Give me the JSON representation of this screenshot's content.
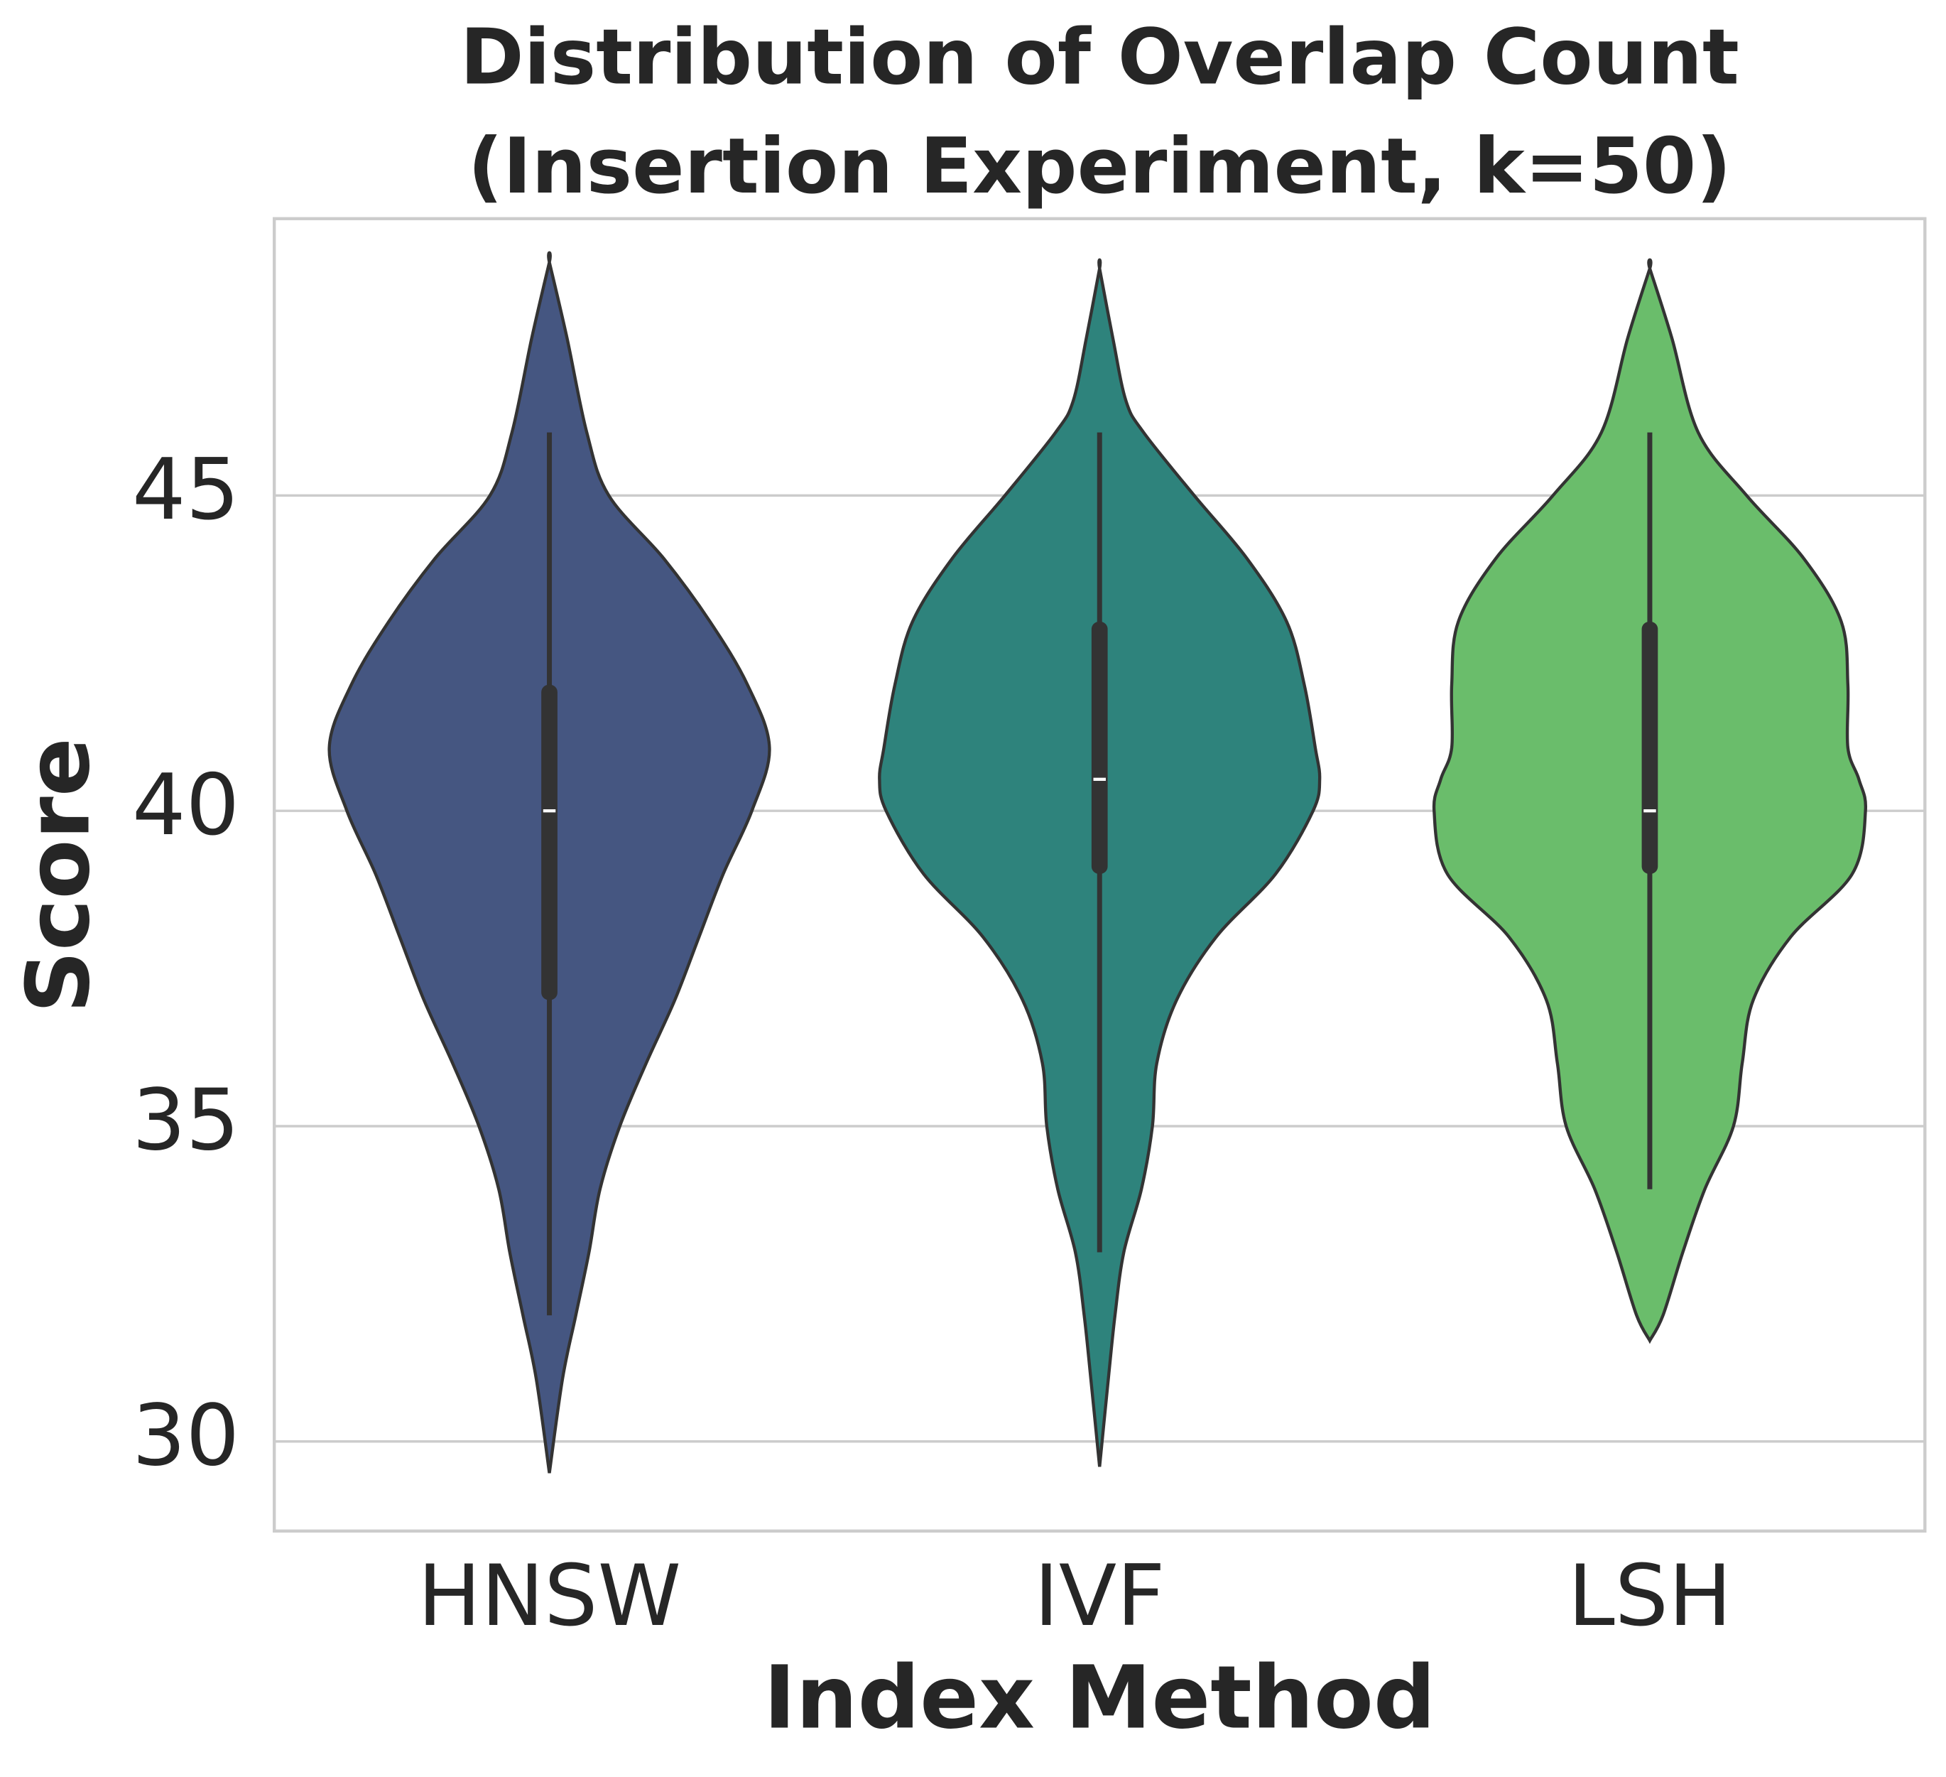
{
  "chart_data": {
    "type": "violin",
    "title": [
      "Distribution of Overlap Count",
      "(Insertion Experiment, k=50)"
    ],
    "x_label": "Index Method",
    "y_label": "Score",
    "categories": [
      "HNSW",
      "IVF",
      "LSH"
    ],
    "ylim": [
      28.58,
      49.39
    ],
    "yticks": [
      30,
      35,
      40,
      45
    ],
    "grid": true,
    "series": [
      {
        "name": "HNSW",
        "color": "#455681",
        "whisker_low": 32,
        "q1": 37,
        "median": 40,
        "q3": 42,
        "whisker_high": 46,
        "density": {
          "y": [
            29.5,
            31,
            32,
            33,
            34,
            35,
            36,
            37,
            38,
            39,
            40,
            41,
            42,
            43,
            44,
            45,
            46,
            47.5,
            48.7
          ],
          "width": [
            0,
            0.06,
            0.12,
            0.18,
            0.23,
            0.32,
            0.44,
            0.57,
            0.68,
            0.79,
            0.92,
            1.0,
            0.9,
            0.73,
            0.52,
            0.27,
            0.17,
            0.08,
            0
          ]
        }
      },
      {
        "name": "IVF",
        "color": "#2e837c",
        "whisker_low": 33,
        "q1": 39,
        "median": 40.5,
        "q3": 43,
        "whisker_high": 46,
        "density": {
          "y": [
            29.6,
            31,
            32,
            33,
            34,
            35,
            36,
            37,
            38,
            39,
            40,
            40.5,
            41,
            42,
            43,
            44,
            45,
            46,
            46.5,
            47.5,
            48.6
          ],
          "width": [
            0,
            0.04,
            0.07,
            0.11,
            0.19,
            0.24,
            0.26,
            0.35,
            0.53,
            0.8,
            0.97,
            1.0,
            0.98,
            0.93,
            0.85,
            0.67,
            0.43,
            0.2,
            0.12,
            0.06,
            0
          ]
        }
      },
      {
        "name": "LSH",
        "color": "#6abd6b",
        "whisker_low": 34,
        "q1": 39,
        "median": 40,
        "q3": 43,
        "whisker_high": 46,
        "density": {
          "y": [
            31.6,
            32,
            33,
            34,
            35,
            36,
            37,
            38,
            39,
            40,
            40.5,
            41,
            42,
            43,
            44,
            45,
            46,
            47.5,
            48.6
          ],
          "width": [
            0,
            0.06,
            0.15,
            0.25,
            0.38,
            0.42,
            0.47,
            0.64,
            0.92,
            0.98,
            0.95,
            0.9,
            0.9,
            0.87,
            0.7,
            0.44,
            0.22,
            0.1,
            0
          ]
        }
      }
    ]
  }
}
